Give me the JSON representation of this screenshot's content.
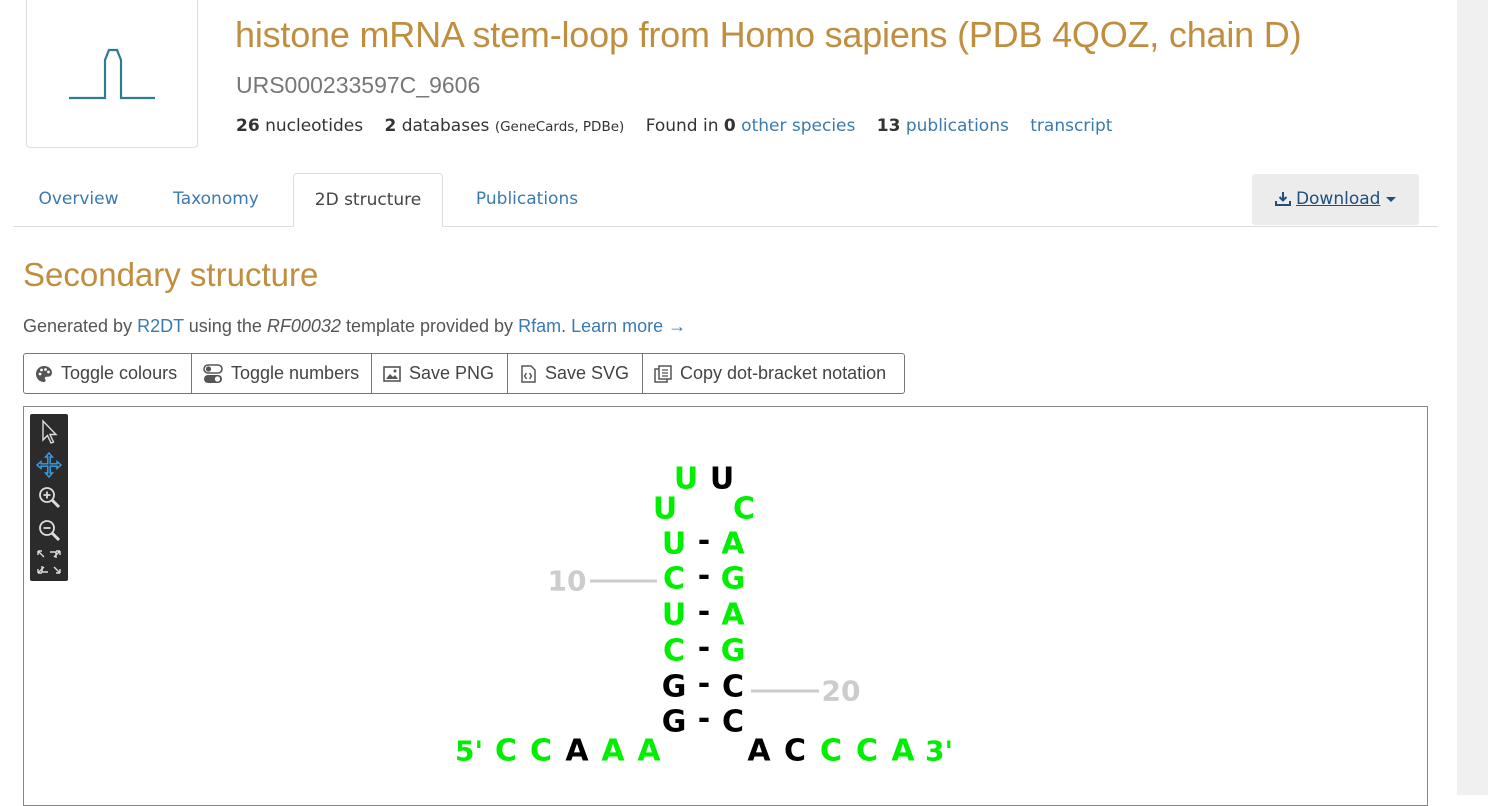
{
  "header": {
    "title": "histone mRNA stem-loop from Homo sapiens (PDB 4QOZ, chain D)",
    "urs_id": "URS000233597C_9606",
    "stats": {
      "nucleotides_count": "26",
      "nucleotides_label": "nucleotides",
      "databases_count": "2",
      "databases_label": "databases",
      "databases_list": "(GeneCards, PDBe)",
      "found_in_label": "Found in",
      "species_count": "0",
      "other_species_link": "other species",
      "publications_count": "13",
      "publications_link": "publications",
      "transcript_link": "transcript"
    }
  },
  "tabs": [
    {
      "label": "Overview",
      "active": false
    },
    {
      "label": "Taxonomy",
      "active": false
    },
    {
      "label": "2D structure",
      "active": true
    },
    {
      "label": "Publications",
      "active": false
    }
  ],
  "download": {
    "label": "Download"
  },
  "section": {
    "title": "Secondary structure",
    "generated": {
      "prefix": "Generated by",
      "tool_link": "R2DT",
      "middle": "using the",
      "template_id": "RF00032",
      "suffix": "template provided by",
      "provider_link": "Rfam",
      "learn_more": "Learn more →"
    }
  },
  "toolbar": {
    "toggle_colours": "Toggle colours",
    "toggle_numbers": "Toggle numbers",
    "save_png": "Save PNG",
    "save_svg": "Save SVG",
    "copy_dot_bracket": "Copy dot-bracket notation"
  },
  "viewer_tools": [
    "pointer-icon",
    "pan-icon",
    "zoom-in-icon",
    "zoom-out-icon",
    "fit-icon"
  ],
  "structure": {
    "colors": {
      "green": "#00ee00",
      "black": "#000000",
      "number": "#cccccc",
      "accent": "#bf8e3e",
      "link": "#3a7ab0"
    },
    "end5": "5'",
    "end3": "3'",
    "number_labels": [
      "10",
      "20"
    ],
    "left_tail": [
      {
        "base": "C",
        "color": "green"
      },
      {
        "base": "C",
        "color": "green"
      },
      {
        "base": "A",
        "color": "black"
      },
      {
        "base": "A",
        "color": "green"
      },
      {
        "base": "A",
        "color": "green"
      }
    ],
    "stem_pairs": [
      {
        "left": {
          "base": "G",
          "color": "black"
        },
        "right": {
          "base": "C",
          "color": "black"
        }
      },
      {
        "left": {
          "base": "G",
          "color": "black"
        },
        "right": {
          "base": "C",
          "color": "black"
        }
      },
      {
        "left": {
          "base": "C",
          "color": "green"
        },
        "right": {
          "base": "G",
          "color": "green"
        }
      },
      {
        "left": {
          "base": "U",
          "color": "green"
        },
        "right": {
          "base": "A",
          "color": "green"
        }
      },
      {
        "left": {
          "base": "C",
          "color": "green"
        },
        "right": {
          "base": "G",
          "color": "green"
        }
      },
      {
        "left": {
          "base": "U",
          "color": "green"
        },
        "right": {
          "base": "A",
          "color": "green"
        }
      }
    ],
    "pair_symbol": "-",
    "loop": [
      {
        "base": "U",
        "color": "green"
      },
      {
        "base": "U",
        "color": "green"
      },
      {
        "base": "U",
        "color": "black"
      },
      {
        "base": "C",
        "color": "green"
      }
    ],
    "right_tail": [
      {
        "base": "A",
        "color": "black"
      },
      {
        "base": "C",
        "color": "black"
      },
      {
        "base": "C",
        "color": "green"
      },
      {
        "base": "C",
        "color": "green"
      },
      {
        "base": "A",
        "color": "green"
      }
    ]
  }
}
